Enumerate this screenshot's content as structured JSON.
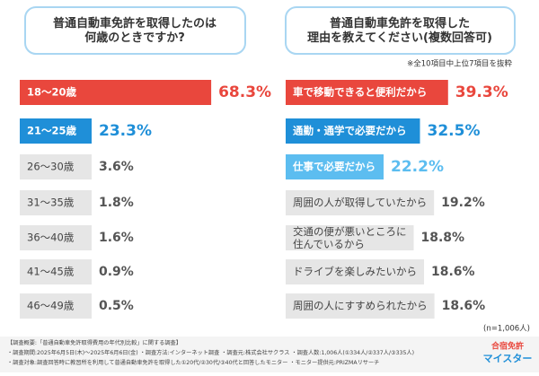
{
  "chart_data": [
    {
      "type": "bar",
      "orientation": "horizontal",
      "title": "普通自動車免許を取得したのは\n何歳のときですか?",
      "categories": [
        "18〜20歳",
        "21〜25歳",
        "26〜30歳",
        "31〜35歳",
        "36〜40歳",
        "41〜45歳",
        "46〜49歳"
      ],
      "values": [
        68.3,
        23.3,
        3.6,
        1.8,
        1.6,
        0.9,
        0.5
      ],
      "value_labels": [
        "68.3%",
        "23.3%",
        "3.6%",
        "1.8%",
        "1.6%",
        "0.9%",
        "0.5%"
      ],
      "colors": [
        "#e9473d",
        "#1f8fd8",
        "#e6e6e6",
        "#e6e6e6",
        "#e6e6e6",
        "#e6e6e6",
        "#e6e6e6"
      ],
      "xlim": [
        0,
        100
      ]
    },
    {
      "type": "bar",
      "orientation": "horizontal",
      "title": "普通自動車免許を取得した\n理由を教えてください(複数回答可)",
      "note": "※全10項目中上位7項目を抜粋",
      "categories": [
        "車で移動できると便利だから",
        "通勤・通学で必要だから",
        "仕事で必要だから",
        "周囲の人が取得していたから",
        "交通の便が悪いところに\n住んでいるから",
        "ドライブを楽しみたいから",
        "周囲の人にすすめられたから"
      ],
      "values": [
        39.3,
        32.5,
        22.2,
        19.2,
        18.8,
        18.6,
        18.6
      ],
      "value_labels": [
        "39.3%",
        "32.5%",
        "22.2%",
        "19.2%",
        "18.8%",
        "18.6%",
        "18.6%"
      ],
      "colors": [
        "#e9473d",
        "#1f8fd8",
        "#5cbdf0",
        "#e6e6e6",
        "#e6e6e6",
        "#e6e6e6",
        "#e6e6e6"
      ],
      "xlim": [
        0,
        100
      ],
      "sample": "(n=1,006人)"
    }
  ],
  "footer": [
    "【調査概要:「普通自動車免許取得費用の年代別比較」に関する調査】",
    "・調査期間:2025年6月5日(木)〜2025年6月6日(金) ・調査方法:インターネット調査 ・調査元:株式会社サクラス ・調査人数:1,006人(①334人/②337人/③335人)",
    "・調査対象:調査回答時に教習所を利用して普通自動車免許を取得した①20代/②30代/③40代と回答したモニター ・モニター提供元:PRIZMAリサーチ"
  ],
  "logo": [
    "合宿免許",
    "マイスター"
  ]
}
